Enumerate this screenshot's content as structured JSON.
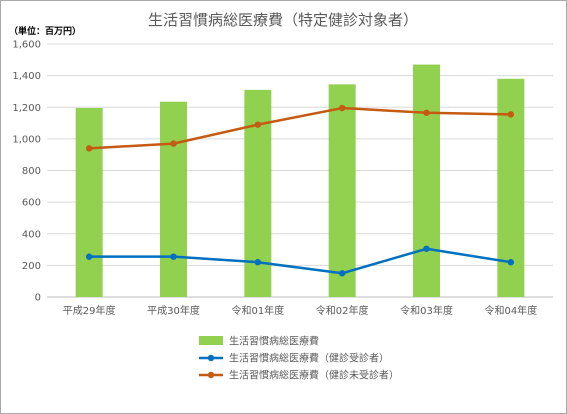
{
  "colors": {
    "bar": "#92d050",
    "line_checked": "#0070c0",
    "line_unchecked": "#c55a11",
    "grid": "#d9d9d9",
    "axis": "#bfbfbf"
  },
  "chart_data": {
    "type": "bar",
    "title": "生活習慣病総医療費（特定健診対象者）",
    "unit_label": "（単位：百万円）",
    "xlabel": "",
    "ylabel": "",
    "ylim": [
      0,
      1600
    ],
    "yticks": [
      0,
      200,
      400,
      600,
      800,
      1000,
      1200,
      1400,
      1600
    ],
    "ytick_labels": [
      "0",
      "200",
      "400",
      "600",
      "800",
      "1,000",
      "1,200",
      "1,400",
      "1,600"
    ],
    "grid": true,
    "legend_position": "bottom-center",
    "categories": [
      "平成29年度",
      "平成30年度",
      "令和01年度",
      "令和02年度",
      "令和03年度",
      "令和04年度"
    ],
    "series": [
      {
        "name": "生活習慣病総医療費",
        "type": "bar",
        "values": [
          1195,
          1235,
          1310,
          1345,
          1470,
          1380
        ]
      },
      {
        "name": "生活習慣病総医療費（健診受診者）",
        "type": "line",
        "values": [
          255,
          255,
          220,
          150,
          305,
          220
        ]
      },
      {
        "name": "生活習慣病総医療費（健診未受診者）",
        "type": "line",
        "values": [
          940,
          970,
          1090,
          1195,
          1165,
          1155
        ]
      }
    ]
  }
}
